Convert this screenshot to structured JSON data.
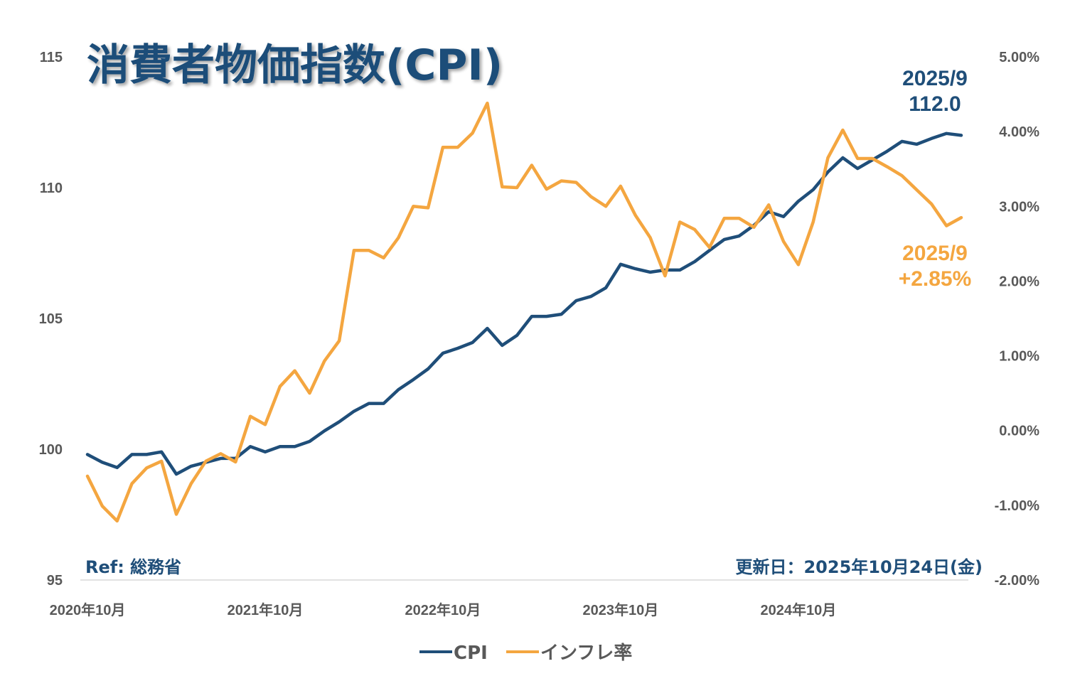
{
  "chart_data": {
    "type": "line",
    "title": "消費者物価指数(CPI)",
    "x": [
      "2020-10",
      "2020-11",
      "2020-12",
      "2021-01",
      "2021-02",
      "2021-03",
      "2021-04",
      "2021-05",
      "2021-06",
      "2021-07",
      "2021-08",
      "2021-09",
      "2021-10",
      "2021-11",
      "2021-12",
      "2022-01",
      "2022-02",
      "2022-03",
      "2022-04",
      "2022-05",
      "2022-06",
      "2022-07",
      "2022-08",
      "2022-09",
      "2022-10",
      "2022-11",
      "2022-12",
      "2023-01",
      "2023-02",
      "2023-03",
      "2023-04",
      "2023-05",
      "2023-06",
      "2023-07",
      "2023-08",
      "2023-09",
      "2023-10",
      "2023-11",
      "2023-12",
      "2024-01",
      "2024-02",
      "2024-03",
      "2024-04",
      "2024-05",
      "2024-06",
      "2024-07",
      "2024-08",
      "2024-09",
      "2024-10",
      "2024-11",
      "2024-12",
      "2025-01",
      "2025-02",
      "2025-03",
      "2025-04",
      "2025-05",
      "2025-06",
      "2025-07",
      "2025-08",
      "2025-09"
    ],
    "x_tick_labels": [
      "2020年10月",
      "2021年10月",
      "2022年10月",
      "2023年10月",
      "2024年10月"
    ],
    "x_tick_positions": [
      "2020-10",
      "2021-10",
      "2022-10",
      "2023-10",
      "2024-10"
    ],
    "y_left": {
      "ylim": [
        95,
        115
      ],
      "ticks": [
        "95",
        "100",
        "105",
        "110",
        "115"
      ]
    },
    "y_right": {
      "ylim": [
        -2,
        5
      ],
      "unit": "%",
      "ticks": [
        "-2.00%",
        "-1.00%",
        "0.00%",
        "1.00%",
        "2.00%",
        "3.00%",
        "4.00%",
        "5.00%"
      ]
    },
    "grid": false,
    "legend": "bottom",
    "series": [
      {
        "name": "CPI",
        "axis": "left",
        "color": "#1F4E79",
        "values": [
          99.8,
          99.5,
          99.3,
          99.8,
          99.8,
          99.9,
          99.05,
          99.35,
          99.5,
          99.65,
          99.65,
          100.1,
          99.9,
          100.1,
          100.1,
          100.3,
          100.7,
          101.05,
          101.45,
          101.75,
          101.75,
          102.28,
          102.66,
          103.07,
          103.67,
          103.86,
          104.08,
          104.62,
          103.97,
          104.35,
          105.08,
          105.08,
          105.16,
          105.68,
          105.84,
          106.17,
          107.07,
          106.9,
          106.77,
          106.85,
          106.85,
          107.17,
          107.6,
          108.02,
          108.15,
          108.56,
          109.08,
          108.89,
          109.48,
          109.92,
          110.6,
          111.14,
          110.73,
          111.06,
          111.39,
          111.77,
          111.66,
          111.88,
          112.07,
          112.0
        ]
      },
      {
        "name": "インフレ率",
        "axis": "right",
        "color": "#F4A640",
        "values": [
          -0.61,
          -1.01,
          -1.21,
          -0.71,
          -0.5,
          -0.41,
          -1.12,
          -0.71,
          -0.41,
          -0.31,
          -0.42,
          0.19,
          0.08,
          0.59,
          0.8,
          0.5,
          0.93,
          1.2,
          2.41,
          2.41,
          2.31,
          2.58,
          3.0,
          2.98,
          3.79,
          3.79,
          3.98,
          4.38,
          3.26,
          3.25,
          3.55,
          3.23,
          3.34,
          3.32,
          3.13,
          3.0,
          3.27,
          2.88,
          2.58,
          2.07,
          2.79,
          2.69,
          2.45,
          2.84,
          2.84,
          2.72,
          3.02,
          2.53,
          2.22,
          2.79,
          3.65,
          4.02,
          3.64,
          3.64,
          3.53,
          3.41,
          3.22,
          3.03,
          2.74,
          2.85
        ]
      }
    ],
    "annotations": {
      "cpi_date": "2025/9",
      "cpi_value": "112.0",
      "infl_date": "2025/9",
      "infl_value": "+2.85%",
      "ref": "Ref: 総務省",
      "updated": "更新日：2025年10月24日(金)"
    }
  }
}
